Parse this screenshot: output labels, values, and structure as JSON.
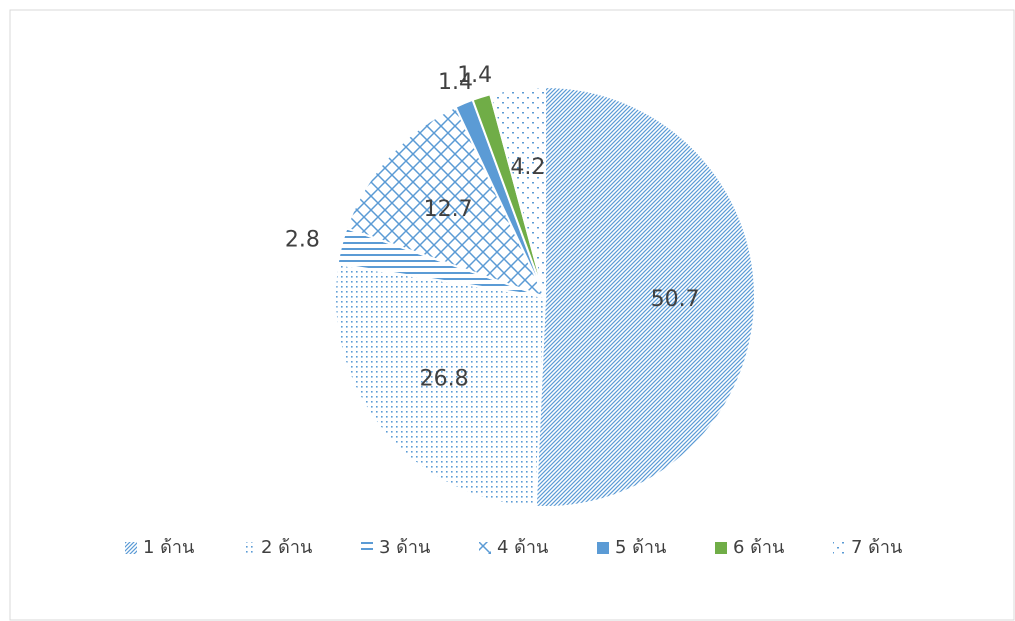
{
  "chart_data": {
    "type": "pie",
    "categories": [
      "1 ด้าน",
      "2 ด้าน",
      "3 ด้าน",
      "4 ด้าน",
      "5 ด้าน",
      "6 ด้าน",
      "7 ด้าน"
    ],
    "values": [
      50.7,
      26.8,
      2.8,
      12.7,
      1.4,
      1.4,
      4.2
    ],
    "colors": [
      "#5b9bd5",
      "#5b9bd5",
      "#5b9bd5",
      "#5b9bd5",
      "#5b9bd5",
      "#70ad47",
      "#5b9bd5"
    ],
    "legend": "bottom"
  }
}
